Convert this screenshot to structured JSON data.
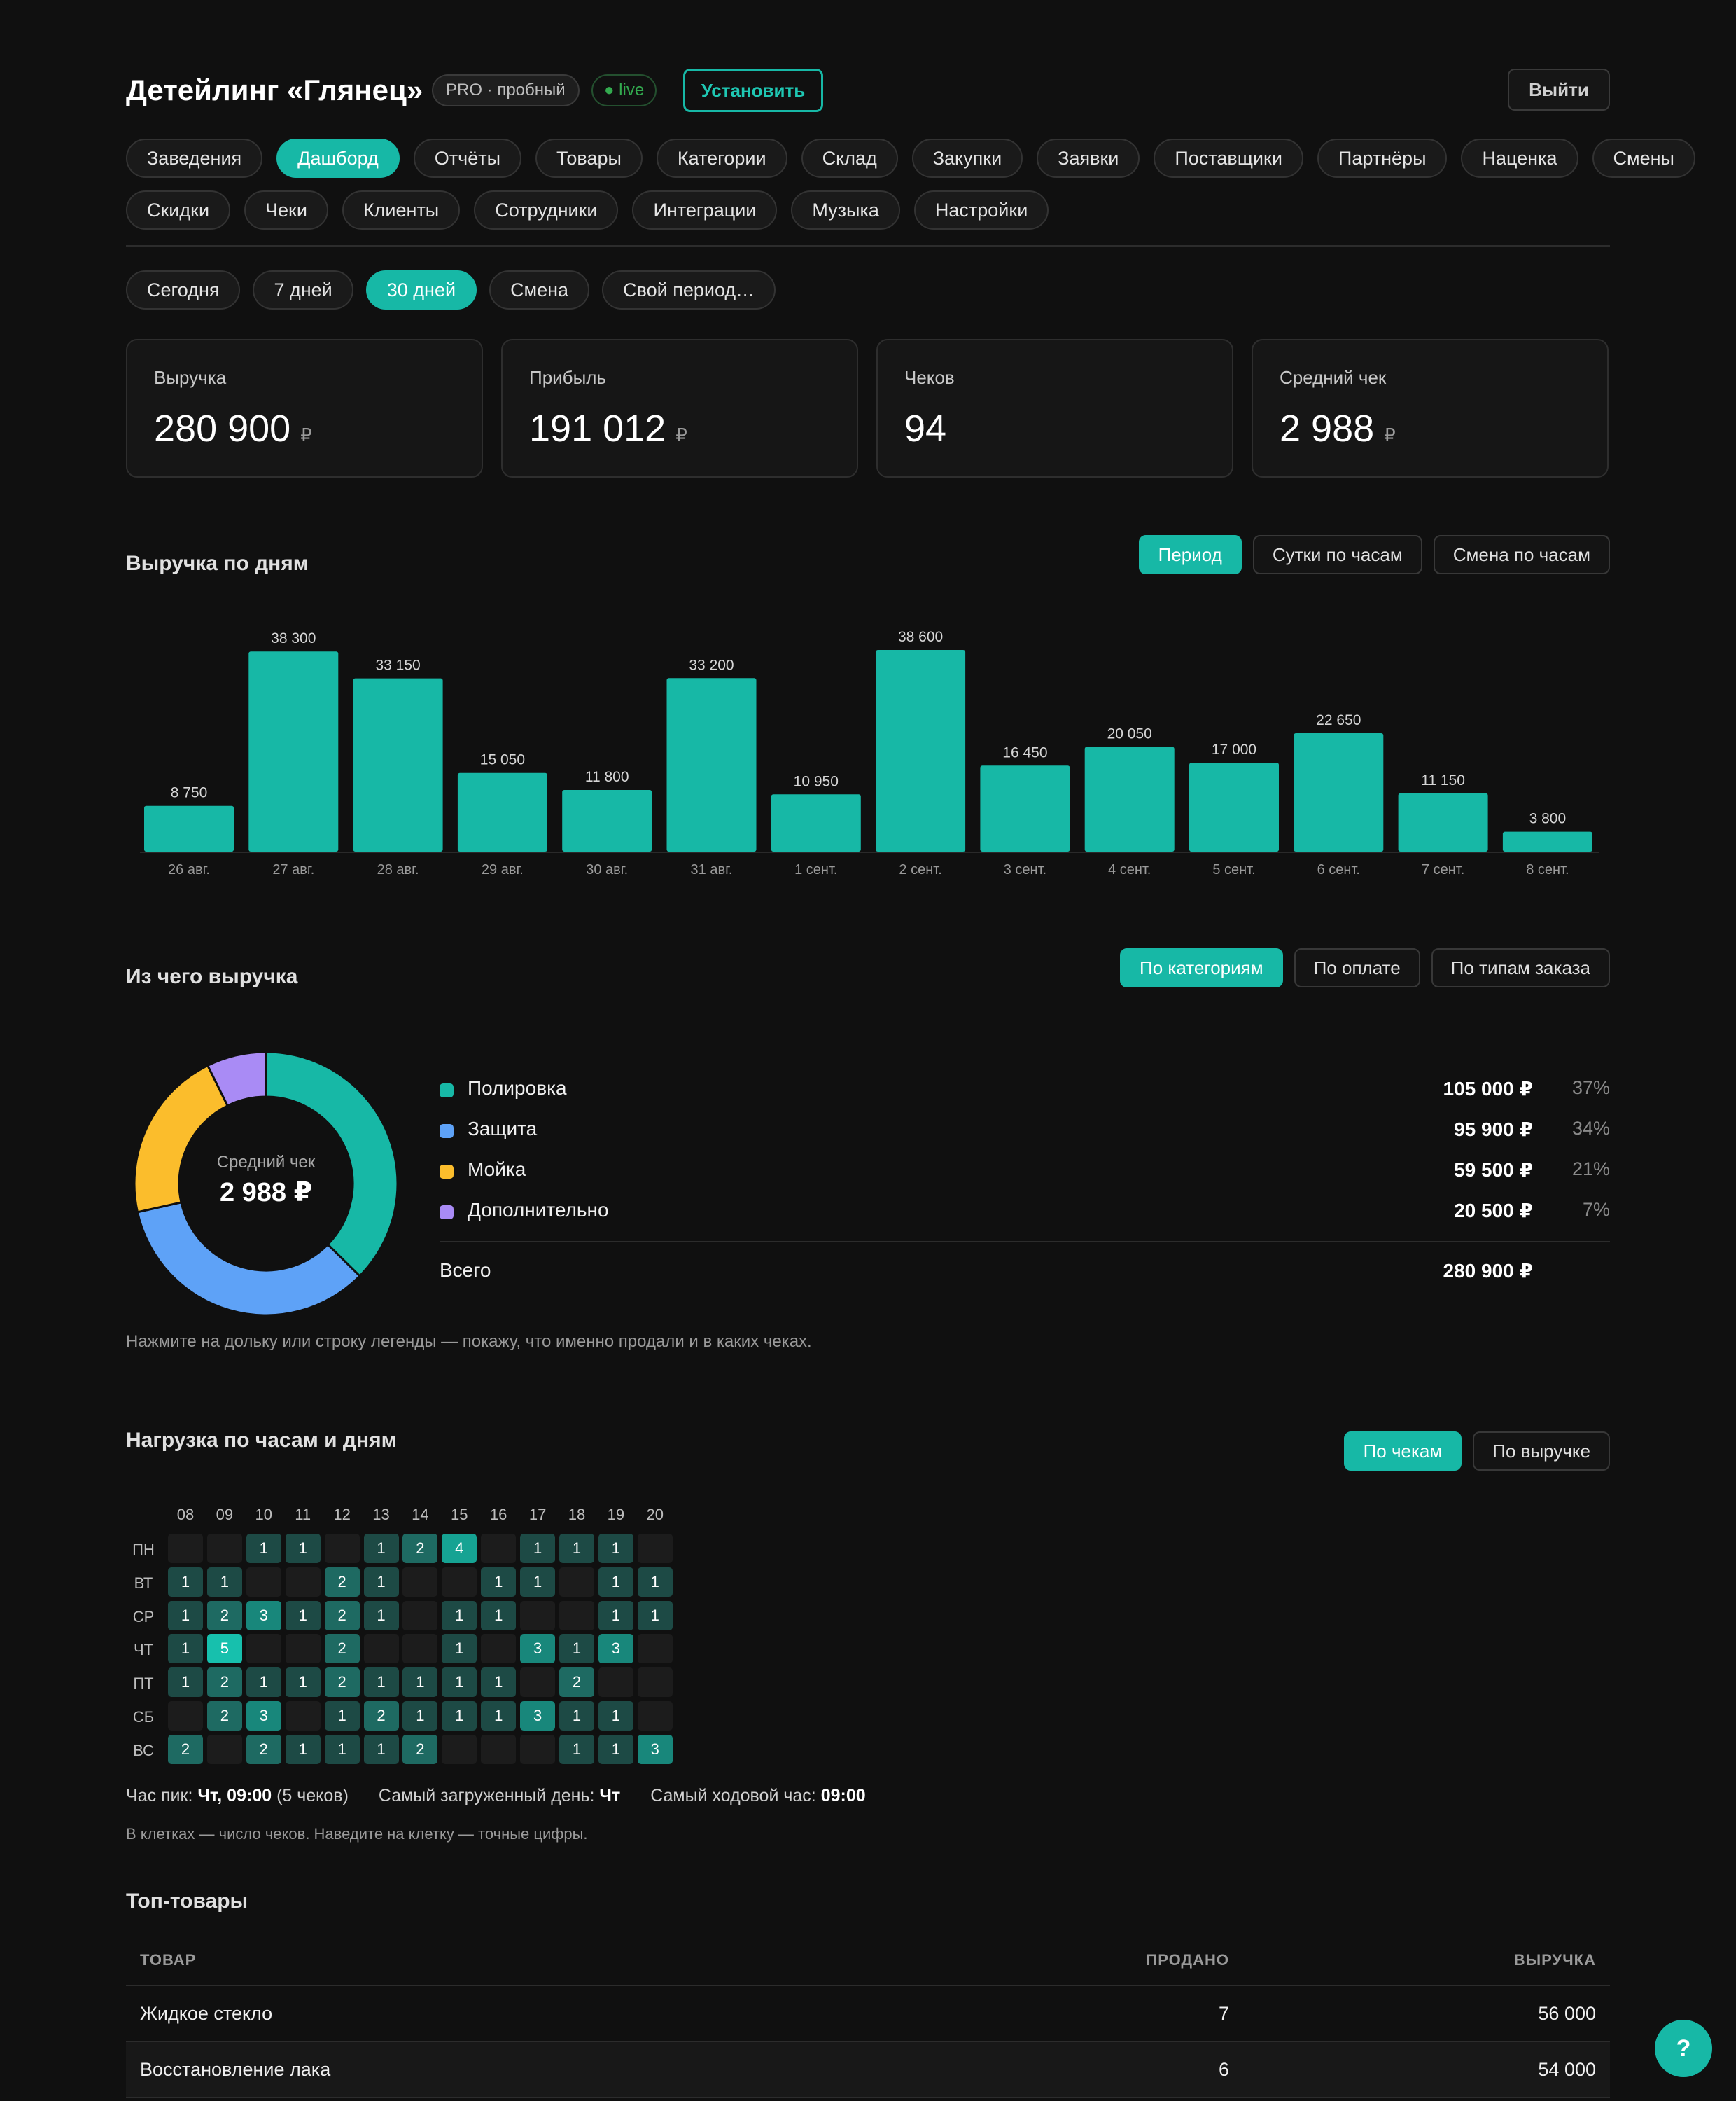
{
  "header": {
    "title": "Детейлинг «Глянец»",
    "plan_badge": "PRO · пробный",
    "live_badge": "● live",
    "install_label": "Установить",
    "logout_label": "Выйти"
  },
  "nav": {
    "row1": [
      "Заведения",
      "Дашборд",
      "Отчёты",
      "Товары",
      "Категории",
      "Склад",
      "Закупки",
      "Заявки",
      "Поставщики",
      "Партнёры",
      "Наценка",
      "Смены"
    ],
    "row2": [
      "Скидки",
      "Чеки",
      "Клиенты",
      "Сотрудники",
      "Интеграции",
      "Музыка",
      "Настройки"
    ],
    "active": "Дашборд"
  },
  "period": {
    "options": [
      "Сегодня",
      "7 дней",
      "30 дней",
      "Смена",
      "Свой период…"
    ],
    "active": "30 дней"
  },
  "kpis": [
    {
      "label": "Выручка",
      "value": "280 900",
      "currency": "₽"
    },
    {
      "label": "Прибыль",
      "value": "191 012",
      "currency": "₽"
    },
    {
      "label": "Чеков",
      "value": "94",
      "currency": ""
    },
    {
      "label": "Средний чек",
      "value": "2 988",
      "currency": "₽"
    }
  ],
  "revenue_by_day": {
    "title": "Выручка по дням",
    "toggles": [
      "Период",
      "Сутки по часам",
      "Смена по часам"
    ],
    "active": "Период"
  },
  "chart_data": [
    {
      "type": "bar",
      "categories": [
        "26 авг.",
        "27 авг.",
        "28 авг.",
        "29 авг.",
        "30 авг.",
        "31 авг.",
        "1 сент.",
        "2 сент.",
        "3 сент.",
        "4 сент.",
        "5 сент.",
        "6 сент.",
        "7 сент.",
        "8 сент."
      ],
      "values": [
        8750,
        38300,
        33150,
        15050,
        11800,
        33200,
        10950,
        38600,
        16450,
        20050,
        17000,
        22650,
        11150,
        3800
      ],
      "value_labels": [
        "8 750",
        "38 300",
        "33 150",
        "15 050",
        "11 800",
        "33 200",
        "10 950",
        "38 600",
        "16 450",
        "20 050",
        "17 000",
        "22 650",
        "11 150",
        "3 800"
      ],
      "ylim": [
        0,
        38600
      ],
      "grid": false,
      "color": "#17b8a6"
    },
    {
      "type": "pie",
      "donut": true,
      "categories": [
        "Полировка",
        "Защита",
        "Мойка",
        "Дополнительно"
      ],
      "values": [
        105000,
        95900,
        59500,
        20500
      ],
      "colors": [
        "#17b8a6",
        "#5ea2f7",
        "#fbbd2c",
        "#a98bf5"
      ],
      "center_label": "Средний чек",
      "center_value": "2 988 ₽"
    },
    {
      "type": "heatmap",
      "x": [
        "08",
        "09",
        "10",
        "11",
        "12",
        "13",
        "14",
        "15",
        "16",
        "17",
        "18",
        "19",
        "20"
      ],
      "y": [
        "ПН",
        "ВТ",
        "СР",
        "ЧТ",
        "ПТ",
        "СБ",
        "ВС"
      ],
      "values": [
        [
          0,
          0,
          1,
          1,
          0,
          1,
          2,
          4,
          0,
          1,
          1,
          1,
          0
        ],
        [
          1,
          1,
          0,
          0,
          2,
          1,
          0,
          0,
          1,
          1,
          0,
          1,
          1
        ],
        [
          1,
          2,
          3,
          1,
          2,
          1,
          0,
          1,
          1,
          0,
          0,
          1,
          1
        ],
        [
          1,
          5,
          0,
          0,
          2,
          0,
          0,
          1,
          0,
          3,
          1,
          3,
          0
        ],
        [
          1,
          2,
          1,
          1,
          2,
          1,
          1,
          1,
          1,
          0,
          2,
          0,
          0
        ],
        [
          0,
          2,
          3,
          0,
          1,
          2,
          1,
          1,
          1,
          3,
          1,
          1,
          0
        ],
        [
          2,
          0,
          2,
          1,
          1,
          1,
          2,
          0,
          0,
          0,
          1,
          1,
          3
        ]
      ]
    }
  ],
  "breakdown": {
    "title": "Из чего выручка",
    "toggles": [
      "По категориям",
      "По оплате",
      "По типам заказа"
    ],
    "active": "По категориям",
    "rows": [
      {
        "name": "Полировка",
        "value": "105 000 ₽",
        "pct": "37%"
      },
      {
        "name": "Защита",
        "value": "95 900 ₽",
        "pct": "34%"
      },
      {
        "name": "Мойка",
        "value": "59 500 ₽",
        "pct": "21%"
      },
      {
        "name": "Дополнительно",
        "value": "20 500 ₽",
        "pct": "7%"
      }
    ],
    "total_label": "Всего",
    "total_value": "280 900 ₽",
    "hint": "Нажмите на дольку или строку легенды — покажу, что именно продали и в каких чеках."
  },
  "load": {
    "title": "Нагрузка по часам и дням",
    "toggles": [
      "По чекам",
      "По выручке"
    ],
    "active": "По чекам",
    "peak_label": "Час пик:",
    "peak_value": "Чт, 09:00",
    "peak_note": "(5 чеков)",
    "busiest_day_label": "Самый загруженный день:",
    "busiest_day_value": "Чт",
    "busiest_hour_label": "Самый ходовой час:",
    "busiest_hour_value": "09:00",
    "hint": "В клетках — число чеков. Наведите на клетку — точные цифры."
  },
  "top_products": {
    "title": "Топ-товары",
    "columns": [
      "ТОВАР",
      "ПРОДАНО",
      "ВЫРУЧКА"
    ],
    "rows": [
      {
        "name": "Жидкое стекло",
        "sold": "7",
        "revenue": "56 000"
      },
      {
        "name": "Восстановление лака",
        "sold": "6",
        "revenue": "54 000"
      }
    ]
  },
  "help_label": "?"
}
